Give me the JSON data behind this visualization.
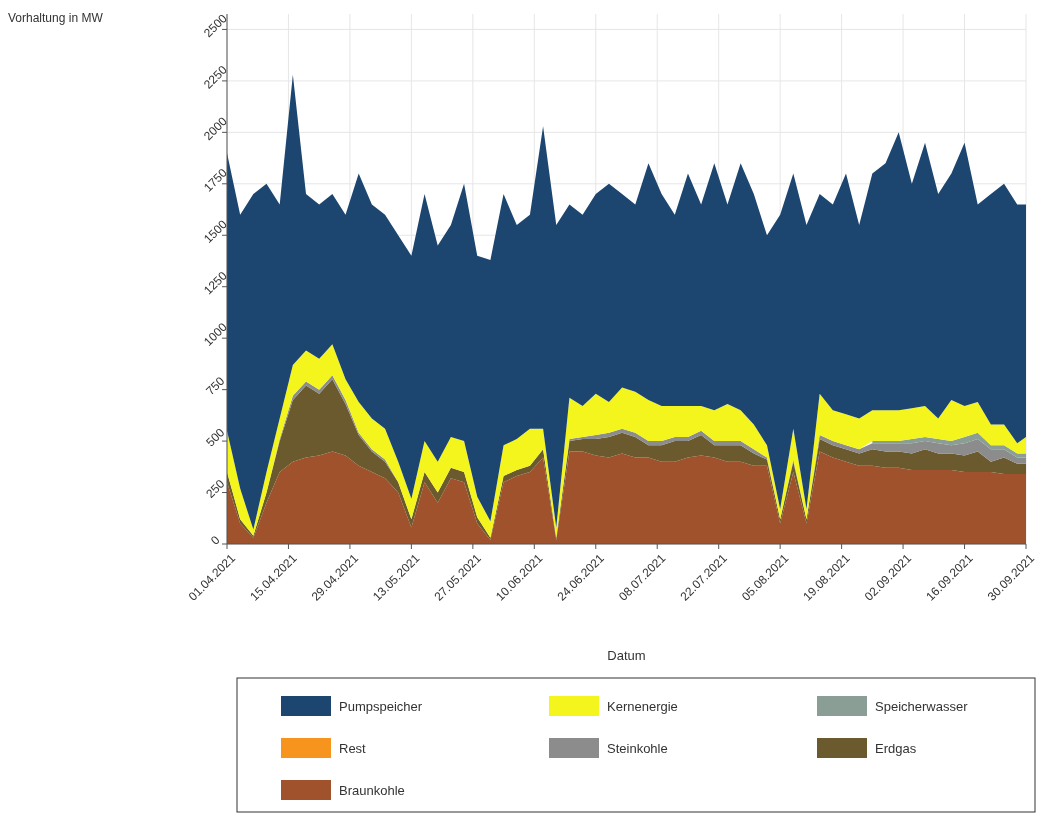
{
  "chart_data": {
    "type": "area",
    "stacked": true,
    "xlabel": "Datum",
    "annotations": [
      "Vorhaltung in MW"
    ],
    "grid": true,
    "legend": "bottom",
    "xlim": [
      "2021-04-01",
      "2021-09-30"
    ],
    "ylim": [
      0,
      2575
    ],
    "yticks": [
      0,
      250,
      500,
      750,
      1000,
      1250,
      1500,
      1750,
      2000,
      2250,
      2500
    ],
    "xticks": [
      {
        "value": "2021-04-01",
        "label": "01.04.2021"
      },
      {
        "value": "2021-04-15",
        "label": "15.04.2021"
      },
      {
        "value": "2021-04-29",
        "label": "29.04.2021"
      },
      {
        "value": "2021-05-13",
        "label": "13.05.2021"
      },
      {
        "value": "2021-05-27",
        "label": "27.05.2021"
      },
      {
        "value": "2021-06-10",
        "label": "10.06.2021"
      },
      {
        "value": "2021-06-24",
        "label": "24.06.2021"
      },
      {
        "value": "2021-07-08",
        "label": "08.07.2021"
      },
      {
        "value": "2021-07-22",
        "label": "22.07.2021"
      },
      {
        "value": "2021-08-05",
        "label": "05.08.2021"
      },
      {
        "value": "2021-08-19",
        "label": "19.08.2021"
      },
      {
        "value": "2021-09-02",
        "label": "02.09.2021"
      },
      {
        "value": "2021-09-16",
        "label": "16.09.2021"
      },
      {
        "value": "2021-09-30",
        "label": "30.09.2021"
      }
    ],
    "x": [
      "2021-04-01",
      "2021-04-04",
      "2021-04-07",
      "2021-04-10",
      "2021-04-13",
      "2021-04-16",
      "2021-04-19",
      "2021-04-22",
      "2021-04-25",
      "2021-04-28",
      "2021-05-01",
      "2021-05-04",
      "2021-05-07",
      "2021-05-10",
      "2021-05-13",
      "2021-05-16",
      "2021-05-19",
      "2021-05-22",
      "2021-05-25",
      "2021-05-28",
      "2021-05-31",
      "2021-06-03",
      "2021-06-06",
      "2021-06-09",
      "2021-06-12",
      "2021-06-15",
      "2021-06-18",
      "2021-06-21",
      "2021-06-24",
      "2021-06-27",
      "2021-06-30",
      "2021-07-03",
      "2021-07-06",
      "2021-07-09",
      "2021-07-12",
      "2021-07-15",
      "2021-07-18",
      "2021-07-21",
      "2021-07-24",
      "2021-07-27",
      "2021-07-30",
      "2021-08-02",
      "2021-08-05",
      "2021-08-08",
      "2021-08-11",
      "2021-08-14",
      "2021-08-17",
      "2021-08-20",
      "2021-08-23",
      "2021-08-26",
      "2021-08-29",
      "2021-09-01",
      "2021-09-04",
      "2021-09-07",
      "2021-09-10",
      "2021-09-13",
      "2021-09-16",
      "2021-09-19",
      "2021-09-22",
      "2021-09-25",
      "2021-09-28",
      "2021-09-30"
    ],
    "series": [
      {
        "name": "Braunkohle",
        "color": "#a0522d",
        "values": [
          300,
          100,
          30,
          200,
          350,
          400,
          420,
          430,
          450,
          430,
          380,
          350,
          320,
          250,
          80,
          300,
          200,
          320,
          300,
          100,
          20,
          300,
          330,
          350,
          420,
          20,
          450,
          450,
          430,
          420,
          440,
          420,
          420,
          400,
          400,
          420,
          430,
          420,
          400,
          400,
          380,
          380,
          100,
          350,
          100,
          450,
          420,
          400,
          380,
          380,
          370,
          370,
          360,
          360,
          360,
          360,
          350,
          350,
          350,
          340,
          340,
          340
        ]
      },
      {
        "name": "Erdgas",
        "color": "#6b5a2e",
        "values": [
          50,
          20,
          10,
          50,
          150,
          300,
          350,
          300,
          350,
          250,
          150,
          100,
          80,
          50,
          40,
          50,
          50,
          50,
          50,
          30,
          10,
          30,
          30,
          30,
          40,
          10,
          50,
          60,
          80,
          100,
          100,
          100,
          60,
          80,
          100,
          80,
          100,
          60,
          80,
          80,
          60,
          30,
          20,
          50,
          20,
          60,
          60,
          60,
          60,
          80,
          80,
          80,
          80,
          100,
          80,
          80,
          80,
          100,
          50,
          80,
          50,
          50
        ]
      },
      {
        "name": "Steinkohle",
        "color": "#8c8c8c",
        "values": [
          0,
          0,
          0,
          0,
          10,
          20,
          20,
          20,
          20,
          20,
          10,
          10,
          10,
          0,
          0,
          0,
          0,
          0,
          0,
          0,
          0,
          0,
          0,
          0,
          0,
          0,
          10,
          10,
          20,
          20,
          20,
          20,
          20,
          20,
          20,
          20,
          20,
          20,
          20,
          20,
          20,
          10,
          0,
          10,
          0,
          20,
          20,
          20,
          20,
          30,
          40,
          40,
          50,
          40,
          50,
          40,
          60,
          60,
          60,
          40,
          30,
          30
        ]
      },
      {
        "name": "Rest",
        "color": "#f7941d",
        "values": [
          null,
          null,
          null,
          null,
          null,
          null,
          null,
          null,
          null,
          null,
          null,
          null,
          null,
          null,
          null,
          null,
          null,
          null,
          null,
          null,
          null,
          null,
          null,
          null,
          null,
          null,
          null,
          null,
          null,
          null,
          null,
          null,
          null,
          null,
          null,
          null,
          null,
          null,
          null,
          null,
          null,
          null,
          null,
          null,
          null,
          null,
          null,
          null,
          null,
          null,
          null,
          null,
          null,
          null,
          null,
          null,
          null,
          null,
          null,
          null,
          null,
          null
        ]
      },
      {
        "name": "Speicherwasser",
        "color": "#8a9e96",
        "values": [
          null,
          null,
          null,
          null,
          null,
          null,
          null,
          null,
          null,
          null,
          null,
          null,
          null,
          null,
          null,
          null,
          null,
          null,
          null,
          null,
          null,
          null,
          null,
          null,
          null,
          null,
          null,
          null,
          null,
          null,
          null,
          null,
          null,
          null,
          null,
          null,
          null,
          null,
          null,
          null,
          null,
          null,
          null,
          null,
          null,
          null,
          null,
          null,
          null,
          10,
          10,
          10,
          20,
          20,
          20,
          20,
          30,
          30,
          20,
          20,
          20,
          20
        ]
      },
      {
        "name": "Kernenergie",
        "color": "#f5f51e",
        "values": [
          200,
          150,
          30,
          100,
          100,
          150,
          150,
          150,
          150,
          100,
          150,
          150,
          150,
          100,
          100,
          150,
          150,
          150,
          150,
          100,
          80,
          150,
          150,
          180,
          100,
          50,
          200,
          150,
          200,
          150,
          200,
          200,
          200,
          170,
          150,
          150,
          120,
          150,
          180,
          150,
          120,
          60,
          50,
          150,
          50,
          200,
          150,
          150,
          150,
          150,
          150,
          150,
          150,
          150,
          100,
          200,
          150,
          150,
          100,
          100,
          50,
          80
        ]
      },
      {
        "name": "Pumpspeicher",
        "color": "#1c4670",
        "values": [
          1350,
          1330,
          1630,
          1400,
          1040,
          1410,
          760,
          750,
          730,
          800,
          1110,
          1040,
          1040,
          1100,
          1180,
          1200,
          1050,
          1030,
          1250,
          1170,
          1270,
          1220,
          1040,
          1040,
          1470,
          1470,
          940,
          930,
          970,
          1060,
          940,
          910,
          1150,
          1030,
          930,
          1130,
          980,
          1200,
          970,
          1200,
          1120,
          1020,
          1430,
          1240,
          1380,
          970,
          1000,
          1170,
          940,
          1150,
          1200,
          1350,
          1090,
          1280,
          1090,
          1100,
          1280,
          960,
          1120,
          1170,
          1160,
          1130
        ]
      }
    ]
  }
}
